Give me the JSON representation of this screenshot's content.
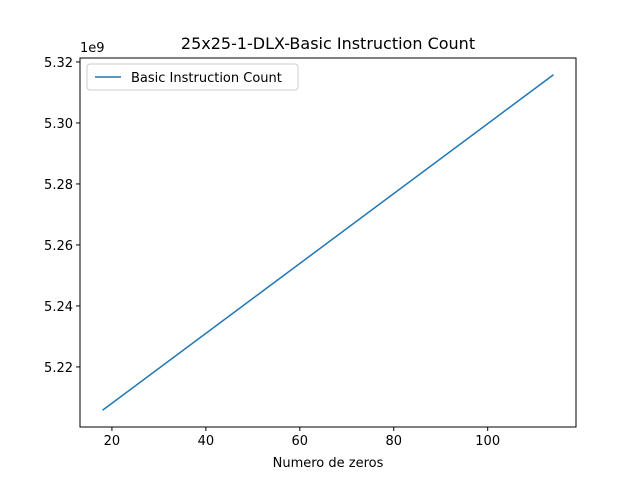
{
  "chart_data": {
    "type": "line",
    "title": "25x25-1-DLX-Basic Instruction Count",
    "xlabel": "Numero de zeros",
    "ylabel": "",
    "offset_label": "1e9",
    "xlim": [
      13.2,
      118.8
    ],
    "ylim": [
      5.2003,
      5.3213
    ],
    "x_ticks": [
      20,
      40,
      60,
      80,
      100
    ],
    "x_tick_labels": [
      "20",
      "40",
      "60",
      "80",
      "100"
    ],
    "y_ticks": [
      5.22,
      5.24,
      5.26,
      5.28,
      5.3,
      5.32
    ],
    "y_tick_labels": [
      "5.22",
      "5.24",
      "5.26",
      "5.28",
      "5.30",
      "5.32"
    ],
    "grid": false,
    "legend": "top-left",
    "series": [
      {
        "name": "Basic Instruction Count",
        "color": "#1f77b4",
        "x": [
          18,
          114
        ],
        "y": [
          5.2058,
          5.3158
        ]
      }
    ]
  }
}
